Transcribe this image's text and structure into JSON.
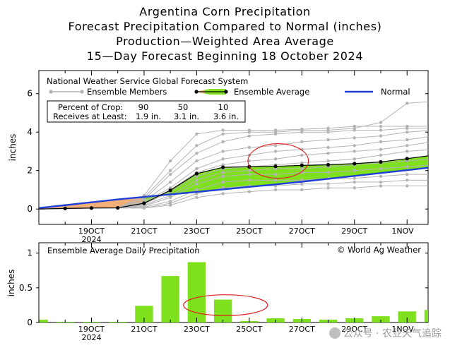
{
  "titles": {
    "line1": "Argentina Corn Precipitation",
    "line2": "Forecast Precipitation Compared to Normal (inches)",
    "line3": "Production—Weighted Area Average",
    "line4": "15—Day Forecast Beginning 18 October 2024"
  },
  "legend": {
    "header": "National Weather Service Global Forecast System",
    "members_label": "Ensemble Members",
    "average_label": "Ensemble Average",
    "normal_label": "Normal"
  },
  "percentiles": {
    "row1_label": "Percent of Crop:",
    "row2_label": "Receives at Least:",
    "crop": [
      "90",
      "50",
      "10"
    ],
    "amounts": [
      "1.9 in.",
      "3.1 in.",
      "3.6 in."
    ]
  },
  "bottom_panel": {
    "title": "Ensemble Average Daily Precipitation",
    "credit": "© World Ag Weather"
  },
  "watermark": {
    "text": "公众号 · 农业天气追踪"
  },
  "colors": {
    "members": "#b4b4b4",
    "average": "#000000",
    "fill": "#7fe01e",
    "fill_early": "#f2b078",
    "normal": "#1f3fd6",
    "bars": "#7fe01e",
    "highlight": "#e02020"
  },
  "chart_data": [
    {
      "type": "line",
      "title": "Forecast Precipitation Compared to Normal (inches)",
      "ylabel": "inches",
      "ylim": [
        -0.8,
        7.2
      ],
      "yticks": [
        0,
        2,
        4,
        6
      ],
      "xlim": [
        17,
        31.8
      ],
      "xtick_labels": [
        {
          "x": 19,
          "label": "19OCT",
          "sub": "2024"
        },
        {
          "x": 21,
          "label": "21OCT"
        },
        {
          "x": 23,
          "label": "23OCT"
        },
        {
          "x": 25,
          "label": "25OCT"
        },
        {
          "x": 27,
          "label": "27OCT"
        },
        {
          "x": 29,
          "label": "29OCT"
        },
        {
          "x": 32,
          "label": "1NOV"
        }
      ],
      "x": [
        17,
        18,
        19,
        20,
        21,
        22,
        23,
        24,
        25,
        26,
        27,
        28,
        29,
        30,
        31,
        32
      ],
      "normal": [
        0.05,
        0.2,
        0.35,
        0.5,
        0.63,
        0.76,
        0.89,
        1.02,
        1.15,
        1.28,
        1.42,
        1.57,
        1.72,
        1.87,
        2.02,
        2.18
      ],
      "ensemble_average": [
        0,
        0.03,
        0.05,
        0.06,
        0.3,
        0.97,
        1.84,
        2.17,
        2.2,
        2.22,
        2.27,
        2.3,
        2.36,
        2.45,
        2.62,
        2.8
      ],
      "ensemble_members": [
        [
          0,
          0.03,
          0.05,
          0.06,
          0.7,
          2.5,
          3.9,
          4.1,
          4.1,
          4.1,
          4.15,
          4.2,
          4.3,
          4.3,
          4.3,
          4.3
        ],
        [
          0,
          0.03,
          0.05,
          0.06,
          0.6,
          2.0,
          3.3,
          3.9,
          4.0,
          4.0,
          4.1,
          4.1,
          4.2,
          4.5,
          5.5,
          5.6
        ],
        [
          0,
          0.03,
          0.05,
          0.06,
          0.5,
          1.8,
          2.9,
          3.5,
          3.8,
          3.9,
          4.0,
          4.0,
          4.1,
          4.1,
          4.2,
          4.2
        ],
        [
          0,
          0.03,
          0.05,
          0.06,
          0.4,
          1.4,
          2.5,
          3.0,
          3.2,
          3.3,
          3.5,
          3.6,
          3.7,
          3.8,
          4.0,
          4.1
        ],
        [
          0,
          0.03,
          0.05,
          0.06,
          0.35,
          1.1,
          2.1,
          2.6,
          2.8,
          3.0,
          3.1,
          3.2,
          3.3,
          3.5,
          3.6,
          3.8
        ],
        [
          0,
          0.03,
          0.05,
          0.06,
          0.3,
          1.0,
          1.9,
          2.3,
          2.5,
          2.6,
          2.8,
          2.9,
          3.0,
          3.1,
          3.3,
          3.5
        ],
        [
          0,
          0.03,
          0.05,
          0.06,
          0.25,
          0.9,
          1.7,
          2.1,
          2.2,
          2.3,
          2.4,
          2.5,
          2.6,
          2.8,
          3.0,
          3.1
        ],
        [
          0,
          0.03,
          0.05,
          0.06,
          0.2,
          0.7,
          1.5,
          1.9,
          2.0,
          2.1,
          2.1,
          2.2,
          2.3,
          2.4,
          2.5,
          2.6
        ],
        [
          0,
          0.03,
          0.05,
          0.06,
          0.15,
          0.6,
          1.3,
          1.7,
          1.8,
          1.8,
          1.9,
          1.9,
          2.0,
          2.1,
          2.2,
          2.3
        ],
        [
          0,
          0.03,
          0.05,
          0.06,
          0.1,
          0.4,
          1.0,
          1.4,
          1.5,
          1.5,
          1.5,
          1.6,
          1.6,
          1.7,
          1.8,
          1.8
        ],
        [
          0,
          0.03,
          0.05,
          0.06,
          0.05,
          0.3,
          0.8,
          1.1,
          1.2,
          1.2,
          1.3,
          1.3,
          1.4,
          1.4,
          1.5,
          1.5
        ],
        [
          0,
          0.03,
          0.05,
          0.06,
          0.05,
          0.2,
          0.6,
          0.8,
          0.9,
          1.0,
          1.0,
          1.1,
          1.1,
          1.2,
          1.2,
          1.2
        ]
      ],
      "annotations": [
        {
          "type": "ellipse",
          "x_center": 26.1,
          "y_center": 2.5,
          "x_radius": 1.15,
          "y_radius": 0.9
        }
      ]
    },
    {
      "type": "bar",
      "title": "Ensemble Average Daily Precipitation",
      "ylabel": "inches",
      "ylim": [
        0,
        1.15
      ],
      "yticks": [
        0,
        0.5,
        1
      ],
      "ytick_labels": [
        "0",
        "0.5",
        "1"
      ],
      "xlim": [
        17,
        31.8
      ],
      "x": [
        17,
        18,
        19,
        20,
        21,
        22,
        23,
        24,
        25,
        26,
        27,
        28,
        29,
        30,
        31,
        32
      ],
      "values": [
        0.04,
        0.01,
        0.01,
        0.01,
        0.24,
        0.67,
        0.87,
        0.33,
        0.02,
        0.06,
        0.05,
        0.04,
        0.06,
        0.09,
        0.16,
        0.18
      ],
      "annotations": [
        {
          "type": "ellipse",
          "x_center": 24.1,
          "y_center": 0.25,
          "x_radius": 1.6,
          "y_radius": 0.15
        }
      ]
    }
  ]
}
